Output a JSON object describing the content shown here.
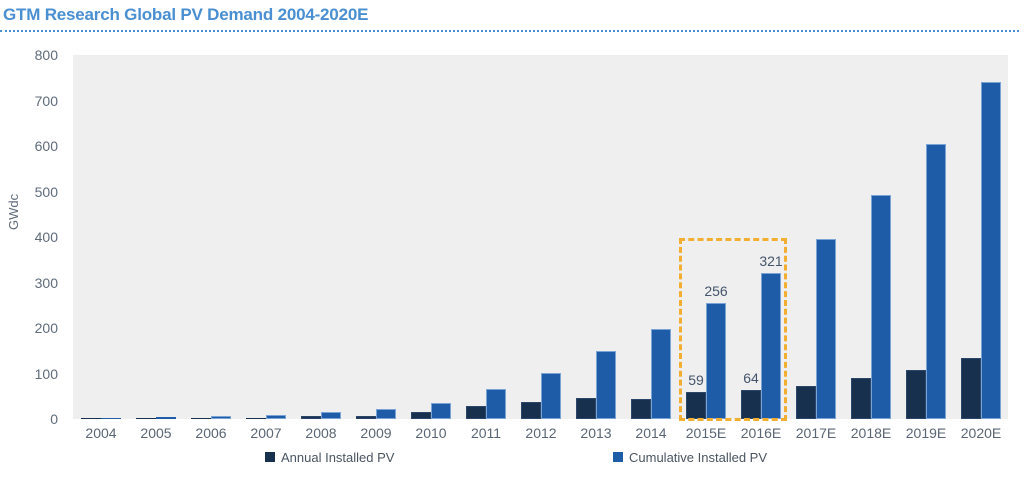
{
  "chart_data": {
    "type": "bar",
    "title": "GTM Research Global PV Demand 2004-2020E",
    "ylabel": "GWdc",
    "ylim": [
      0,
      800
    ],
    "ytick_step": 100,
    "grid": false,
    "legend_position": "bottom",
    "plot_background": "#f0eff0",
    "title_color": "#4a8fd1",
    "categories": [
      "2004",
      "2005",
      "2006",
      "2007",
      "2008",
      "2009",
      "2010",
      "2011",
      "2012",
      "2013",
      "2014",
      "2015E",
      "2016E",
      "2017E",
      "2018E",
      "2019E",
      "2020E"
    ],
    "series": [
      {
        "name": "Annual Installed PV",
        "color": "#16304e",
        "values": [
          1,
          1,
          2,
          3,
          6,
          7,
          15,
          28,
          38,
          47,
          44,
          59,
          64,
          73,
          90,
          108,
          135
        ]
      },
      {
        "name": "Cumulative Installed PV",
        "color": "#1e5ca8",
        "values": [
          3,
          5,
          7,
          9,
          15,
          21,
          35,
          65,
          102,
          150,
          197,
          256,
          321,
          395,
          492,
          605,
          741
        ]
      }
    ],
    "data_labels": [
      {
        "category": "2015E",
        "series": 0,
        "text": "59"
      },
      {
        "category": "2015E",
        "series": 1,
        "text": "256"
      },
      {
        "category": "2016E",
        "series": 0,
        "text": "64"
      },
      {
        "category": "2016E",
        "series": 1,
        "text": "321"
      }
    ],
    "highlight_box": {
      "from_category": "2015E",
      "to_category": "2016E",
      "top_value": 398,
      "color": "#f2ae30"
    },
    "yticks": [
      "0",
      "100",
      "200",
      "300",
      "400",
      "500",
      "600",
      "700",
      "800"
    ]
  }
}
